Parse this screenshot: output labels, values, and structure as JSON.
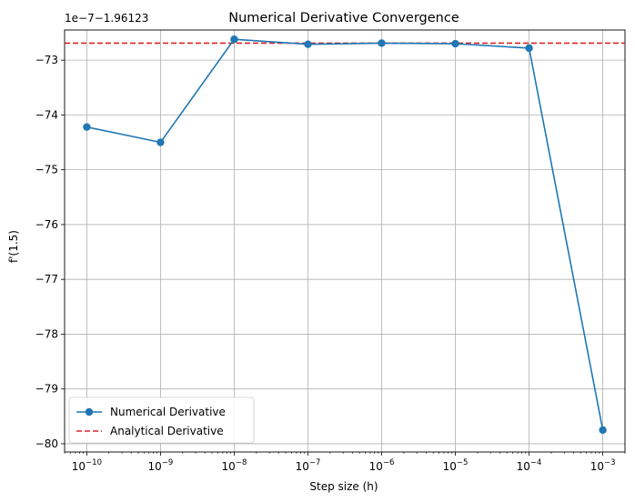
{
  "chart_data": {
    "type": "line",
    "title": "Numerical Derivative Convergence",
    "xlabel": "Step size (h)",
    "ylabel": "f'(1.5)",
    "x_scale": "log",
    "xlim": [
      5e-11,
      0.002
    ],
    "ylim": [
      -80.15,
      -72.45
    ],
    "offset_text": "1e−7−1.96123",
    "x_ticks": [
      {
        "value": 1e-10,
        "base": "10",
        "exp": "−10"
      },
      {
        "value": 1e-09,
        "base": "10",
        "exp": "−9"
      },
      {
        "value": 1e-08,
        "base": "10",
        "exp": "−8"
      },
      {
        "value": 1e-07,
        "base": "10",
        "exp": "−7"
      },
      {
        "value": 1e-06,
        "base": "10",
        "exp": "−6"
      },
      {
        "value": 1e-05,
        "base": "10",
        "exp": "−5"
      },
      {
        "value": 0.0001,
        "base": "10",
        "exp": "−4"
      },
      {
        "value": 0.001,
        "base": "10",
        "exp": "−3"
      }
    ],
    "y_ticks": [
      {
        "value": -73,
        "label": "−73"
      },
      {
        "value": -74,
        "label": "−74"
      },
      {
        "value": -75,
        "label": "−75"
      },
      {
        "value": -76,
        "label": "−76"
      },
      {
        "value": -77,
        "label": "−77"
      },
      {
        "value": -78,
        "label": "−78"
      },
      {
        "value": -79,
        "label": "−79"
      },
      {
        "value": -80,
        "label": "−80"
      }
    ],
    "grid": true,
    "legend_position": "lower-left",
    "series": [
      {
        "name": "Numerical Derivative",
        "style": "line-markers",
        "color": "#1f77b4",
        "x": [
          1e-10,
          1e-09,
          1e-08,
          1e-07,
          1e-06,
          1e-05,
          0.0001,
          0.001
        ],
        "y": [
          -74.22,
          -74.5,
          -72.62,
          -72.71,
          -72.69,
          -72.7,
          -72.78,
          -79.75
        ]
      },
      {
        "name": "Analytical Derivative",
        "style": "dashed-hline",
        "color": "#d62728",
        "y": -72.69
      }
    ]
  }
}
